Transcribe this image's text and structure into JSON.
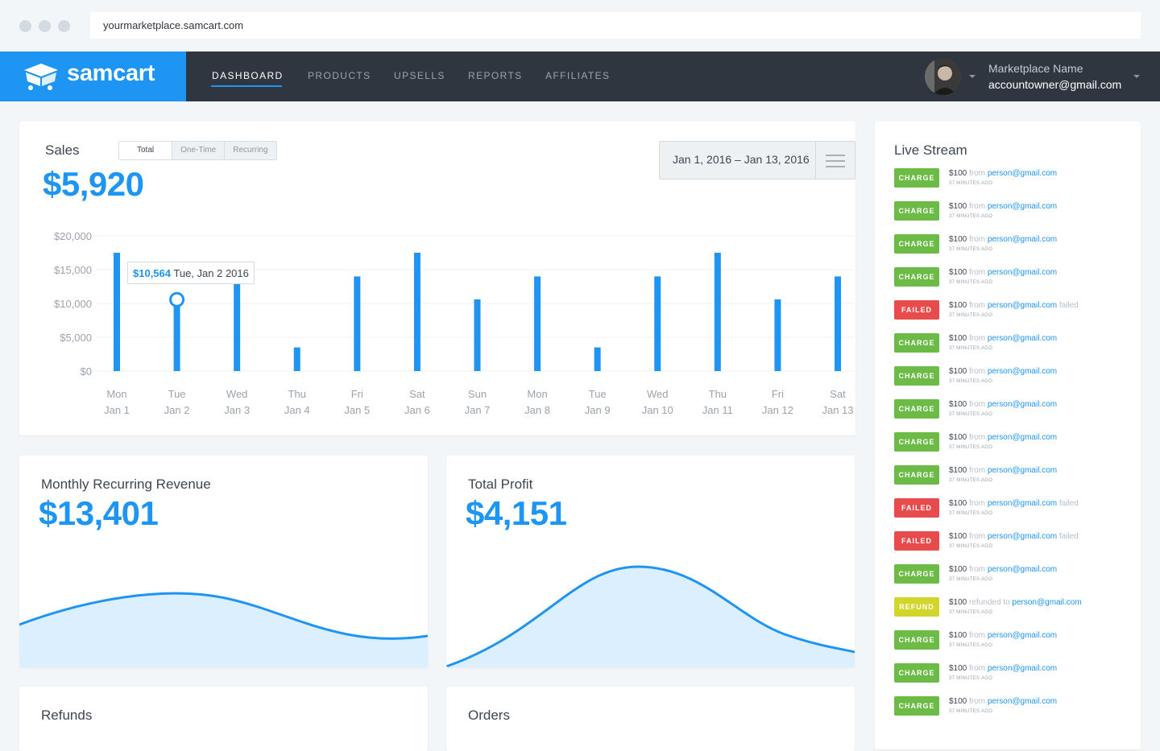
{
  "browser": {
    "url": "yourmarketplace.samcart.com"
  },
  "nav": {
    "brand": "samcart",
    "items": [
      "DASHBOARD",
      "PRODUCTS",
      "UPSELLS",
      "REPORTS",
      "AFFILIATES"
    ],
    "active": "DASHBOARD",
    "account_name": "Marketplace Name",
    "account_email": "accountowner@gmail.com"
  },
  "sales": {
    "title": "Sales",
    "segments": [
      "Total",
      "One-Time",
      "Recurring"
    ],
    "selected_segment": "Total",
    "total": "$5,920",
    "date_range": "Jan 1, 2016 – Jan 13, 2016",
    "tooltip_value": "$10,564",
    "tooltip_date": "Tue, Jan 2 2016"
  },
  "mrr": {
    "title": "Monthly Recurring Revenue",
    "value": "$13,401"
  },
  "profit": {
    "title": "Total Profit",
    "value": "$4,151"
  },
  "refunds": {
    "title": "Refunds"
  },
  "orders": {
    "title": "Orders"
  },
  "chart_data": {
    "type": "bar",
    "categories": [
      [
        "Mon",
        "Jan 1"
      ],
      [
        "Tue",
        "Jan 2"
      ],
      [
        "Wed",
        "Jan 3"
      ],
      [
        "Thu",
        "Jan 4"
      ],
      [
        "Fri",
        "Jan 5"
      ],
      [
        "Sat",
        "Jan 6"
      ],
      [
        "Sun",
        "Jan 7"
      ],
      [
        "Mon",
        "Jan 8"
      ],
      [
        "Tue",
        "Jan 9"
      ],
      [
        "Wed",
        "Jan 10"
      ],
      [
        "Thu",
        "Jan 11"
      ],
      [
        "Fri",
        "Jan 12"
      ],
      [
        "Sat",
        "Jan 13"
      ]
    ],
    "values": [
      17500,
      10564,
      14000,
      3500,
      14000,
      17500,
      10600,
      14000,
      3500,
      14000,
      17500,
      10600,
      14000
    ],
    "highlighted_index": 1,
    "y_ticks": [
      "$0",
      "$5,000",
      "$10,000",
      "$15,000",
      "$20,000"
    ],
    "ylim": [
      0,
      20000
    ],
    "grid": true,
    "color": "#1e94f3"
  },
  "live_stream": {
    "title": "Live Stream",
    "items": [
      {
        "type": "CHARGE",
        "amount": "$100",
        "verb": "from",
        "email": "person@gmail.com",
        "suffix": "",
        "time": "37 MINUTES AGO"
      },
      {
        "type": "CHARGE",
        "amount": "$100",
        "verb": "from",
        "email": "person@gmail.com",
        "suffix": "",
        "time": "37 MINUTES AGO"
      },
      {
        "type": "CHARGE",
        "amount": "$100",
        "verb": "from",
        "email": "person@gmail.com",
        "suffix": "",
        "time": "37 MINUTES AGO"
      },
      {
        "type": "CHARGE",
        "amount": "$100",
        "verb": "from",
        "email": "person@gmail.com",
        "suffix": "",
        "time": "37 MINUTES AGO"
      },
      {
        "type": "FAILED",
        "amount": "$100",
        "verb": "from",
        "email": "person@gmail.com",
        "suffix": "failed",
        "time": "37 MINUTES AGO"
      },
      {
        "type": "CHARGE",
        "amount": "$100",
        "verb": "from",
        "email": "person@gmail.com",
        "suffix": "",
        "time": "37 MINUTES AGO"
      },
      {
        "type": "CHARGE",
        "amount": "$100",
        "verb": "from",
        "email": "person@gmail.com",
        "suffix": "",
        "time": "37 MINUTES AGO"
      },
      {
        "type": "CHARGE",
        "amount": "$100",
        "verb": "from",
        "email": "person@gmail.com",
        "suffix": "",
        "time": "37 MINUTES AGO"
      },
      {
        "type": "CHARGE",
        "amount": "$100",
        "verb": "from",
        "email": "person@gmail.com",
        "suffix": "",
        "time": "37 MINUTES AGO"
      },
      {
        "type": "CHARGE",
        "amount": "$100",
        "verb": "from",
        "email": "person@gmail.com",
        "suffix": "",
        "time": "37 MINUTES AGO"
      },
      {
        "type": "FAILED",
        "amount": "$100",
        "verb": "from",
        "email": "person@gmail.com",
        "suffix": "failed",
        "time": "37 MINUTES AGO"
      },
      {
        "type": "FAILED",
        "amount": "$100",
        "verb": "from",
        "email": "person@gmail.com",
        "suffix": "failed",
        "time": "37 MINUTES AGO"
      },
      {
        "type": "CHARGE",
        "amount": "$100",
        "verb": "from",
        "email": "person@gmail.com",
        "suffix": "",
        "time": "37 MINUTES AGO"
      },
      {
        "type": "REFUND",
        "amount": "$100",
        "verb": "refunded to",
        "email": "person@gmail.com",
        "suffix": "",
        "time": "37 MINUTES AGO"
      },
      {
        "type": "CHARGE",
        "amount": "$100",
        "verb": "from",
        "email": "person@gmail.com",
        "suffix": "",
        "time": "37 MINUTES AGO"
      },
      {
        "type": "CHARGE",
        "amount": "$100",
        "verb": "from",
        "email": "person@gmail.com",
        "suffix": "",
        "time": "37 MINUTES AGO"
      },
      {
        "type": "CHARGE",
        "amount": "$100",
        "verb": "from",
        "email": "person@gmail.com",
        "suffix": "",
        "time": "37 MINUTES AGO"
      }
    ]
  },
  "badge_colors": {
    "CHARGE": "#6cbb46",
    "FAILED": "#e84b4b",
    "REFUND": "#d2d62a"
  }
}
